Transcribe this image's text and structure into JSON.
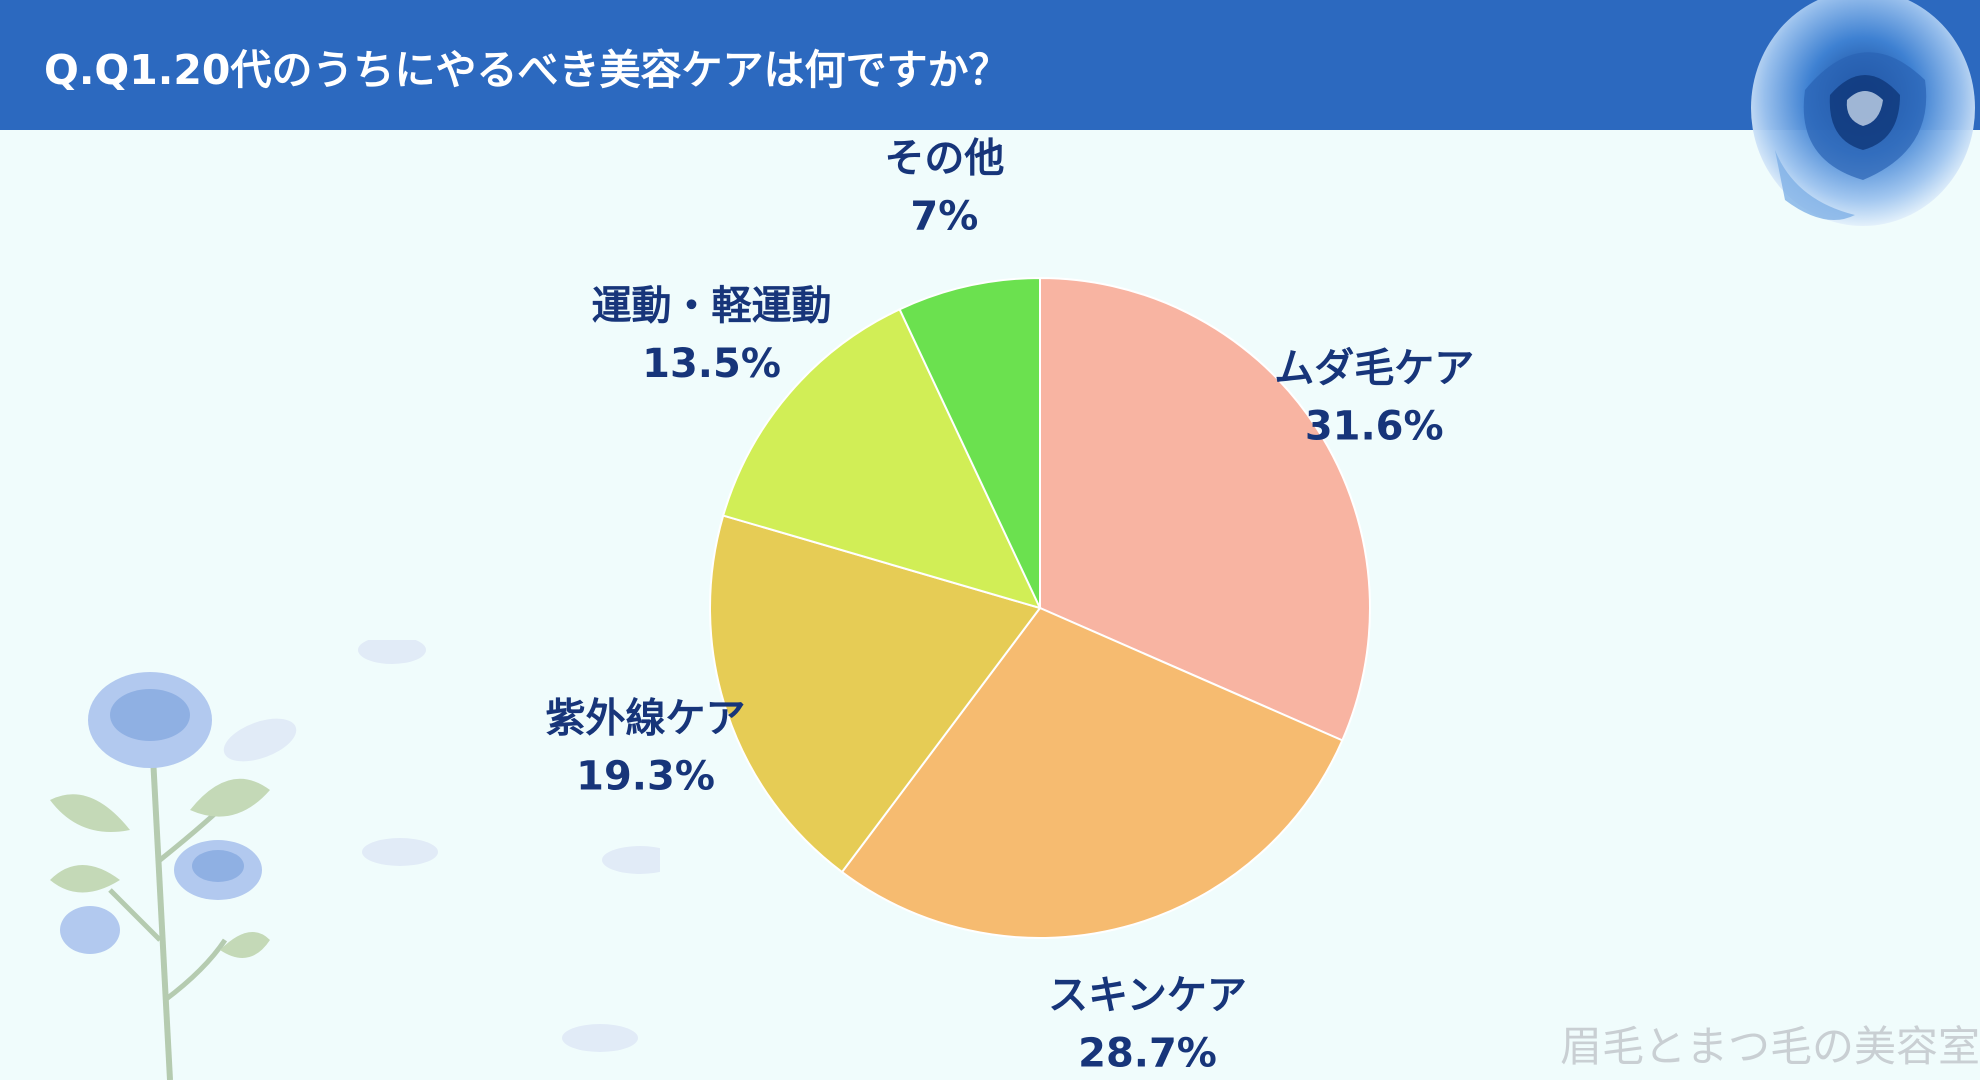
{
  "header": {
    "title": "Q.Q1.20代のうちにやるべき美容ケアは何ですか？"
  },
  "watermark": "眉毛とまつ毛の美容室",
  "colors": {
    "header_bg": "#2c69bf",
    "background": "#f0fcfc",
    "label_text": "#17357a"
  },
  "chart_data": {
    "type": "pie",
    "title": "Q.Q1.20代のうちにやるべき美容ケアは何ですか？",
    "start_angle": "12 o'clock",
    "direction": "clockwise",
    "slices": [
      {
        "label": "ムダ毛ケア",
        "value": 31.6,
        "value_label": "31.6%",
        "color": "#f8b4a2"
      },
      {
        "label": "スキンケア",
        "value": 28.7,
        "value_label": "28.7%",
        "color": "#f6bb70"
      },
      {
        "label": "紫外線ケア",
        "value": 19.3,
        "value_label": "19.3%",
        "color": "#e6cc55"
      },
      {
        "label": "運動・軽運動",
        "value": 13.5,
        "value_label": "13.5%",
        "color": "#d1ee56"
      },
      {
        "label": "その他",
        "value": 7,
        "value_label": "7%",
        "color": "#6be14f"
      }
    ]
  }
}
